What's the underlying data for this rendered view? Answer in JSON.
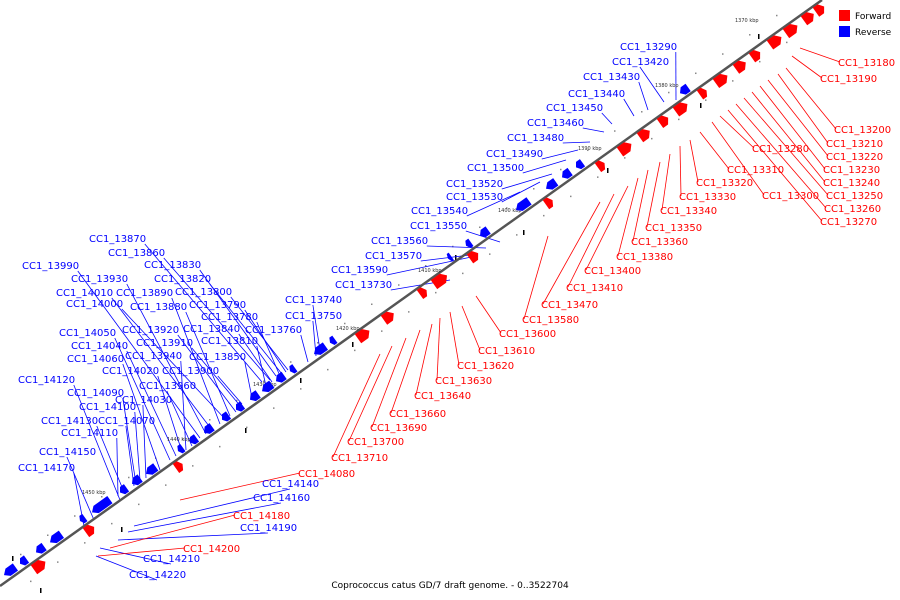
{
  "caption": "Coprococcus catus GD/7 draft genome. - 0..3522704",
  "legend": [
    {
      "label": "Forward",
      "color": "#ff0000"
    },
    {
      "label": "Reverse",
      "color": "#0000ff"
    }
  ],
  "ticks": [
    "1370 kbp",
    "1380 kbp",
    "1390 kbp",
    "1400 kbp",
    "1410 kbp",
    "1420 kbp",
    "1430 kbp",
    "1440 kbp",
    "1450 kbp"
  ],
  "colors": {
    "forward": "#ff0000",
    "reverse": "#0000ff",
    "axis": "#555555"
  },
  "reverse_labels": [
    "CC1_13290",
    "CC1_13420",
    "CC1_13430",
    "CC1_13440",
    "CC1_13450",
    "CC1_13460",
    "CC1_13480",
    "CC1_13490",
    "CC1_13500",
    "CC1_13520",
    "CC1_13530",
    "CC1_13540",
    "CC1_13550",
    "CC1_13560",
    "CC1_13570",
    "CC1_13590",
    "CC1_13730",
    "CC1_13740",
    "CC1_13750",
    "CC1_13760",
    "CC1_13870",
    "CC1_13860",
    "CC1_13830",
    "CC1_13820",
    "CC1_13800",
    "CC1_13790",
    "CC1_13780",
    "CC1_13810",
    "CC1_13840",
    "CC1_13850",
    "CC1_13900",
    "CC1_13990",
    "CC1_13930",
    "CC1_14010",
    "CC1_13890",
    "CC1_14000",
    "CC1_13880",
    "CC1_13920",
    "CC1_13910",
    "CC1_14050",
    "CC1_14040",
    "CC1_13940",
    "CC1_14060",
    "CC1_14020",
    "CC1_13960",
    "CC1_14120",
    "CC1_14030",
    "CC1_14090",
    "CC1_14100",
    "CC1_14070",
    "CC1_14130",
    "CC1_14110",
    "CC1_14150",
    "CC1_14170",
    "CC1_14140",
    "CC1_14160",
    "CC1_14190",
    "CC1_14210",
    "CC1_14220"
  ],
  "forward_labels": [
    "CC1_13180",
    "CC1_13190",
    "CC1_13200",
    "CC1_13210",
    "CC1_13220",
    "CC1_13230",
    "CC1_13240",
    "CC1_13250",
    "CC1_13260",
    "CC1_13270",
    "CC1_13280",
    "CC1_13300",
    "CC1_13310",
    "CC1_13320",
    "CC1_13330",
    "CC1_13340",
    "CC1_13350",
    "CC1_13360",
    "CC1_13380",
    "CC1_13400",
    "CC1_13410",
    "CC1_13470",
    "CC1_13580",
    "CC1_13600",
    "CC1_13610",
    "CC1_13620",
    "CC1_13630",
    "CC1_13640",
    "CC1_13660",
    "CC1_13690",
    "CC1_13700",
    "CC1_13710",
    "CC1_14080",
    "CC1_14180",
    "CC1_14200"
  ]
}
